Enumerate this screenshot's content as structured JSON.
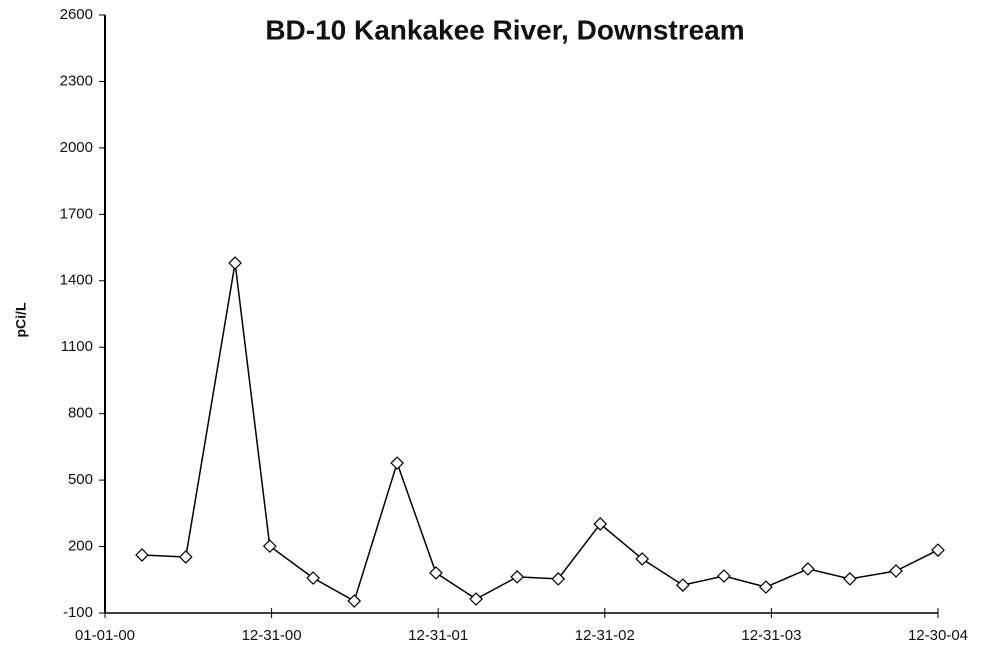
{
  "chart_data": {
    "type": "line",
    "title": "BD-10  Kankakee River, Downstream",
    "ylabel": "pCi/L",
    "x": [
      81,
      177,
      285,
      361,
      456,
      546,
      640,
      725,
      813,
      903,
      993,
      1085,
      1177,
      1266,
      1356,
      1448,
      1540,
      1632,
      1733,
      1825
    ],
    "series": [
      {
        "name": "BD-10",
        "color": "#000000",
        "values": [
          162,
          153,
          1480,
          202,
          58,
          -46,
          577,
          81,
          -37,
          63,
          54,
          302,
          144,
          26,
          67,
          17,
          99,
          54,
          90,
          184
        ]
      }
    ],
    "xlim": [
      0,
      1825
    ],
    "xticks": [
      {
        "value": 0,
        "label": "01-01-00"
      },
      {
        "value": 365,
        "label": "12-31-00"
      },
      {
        "value": 730,
        "label": "12-31-01"
      },
      {
        "value": 1095,
        "label": "12-31-02"
      },
      {
        "value": 1460,
        "label": "12-31-03"
      },
      {
        "value": 1825,
        "label": "12-30-04"
      }
    ],
    "ylim": [
      -100,
      2600
    ],
    "yticks": [
      -100,
      200,
      500,
      800,
      1100,
      1400,
      1700,
      2000,
      2300,
      2600
    ],
    "grid": false
  }
}
